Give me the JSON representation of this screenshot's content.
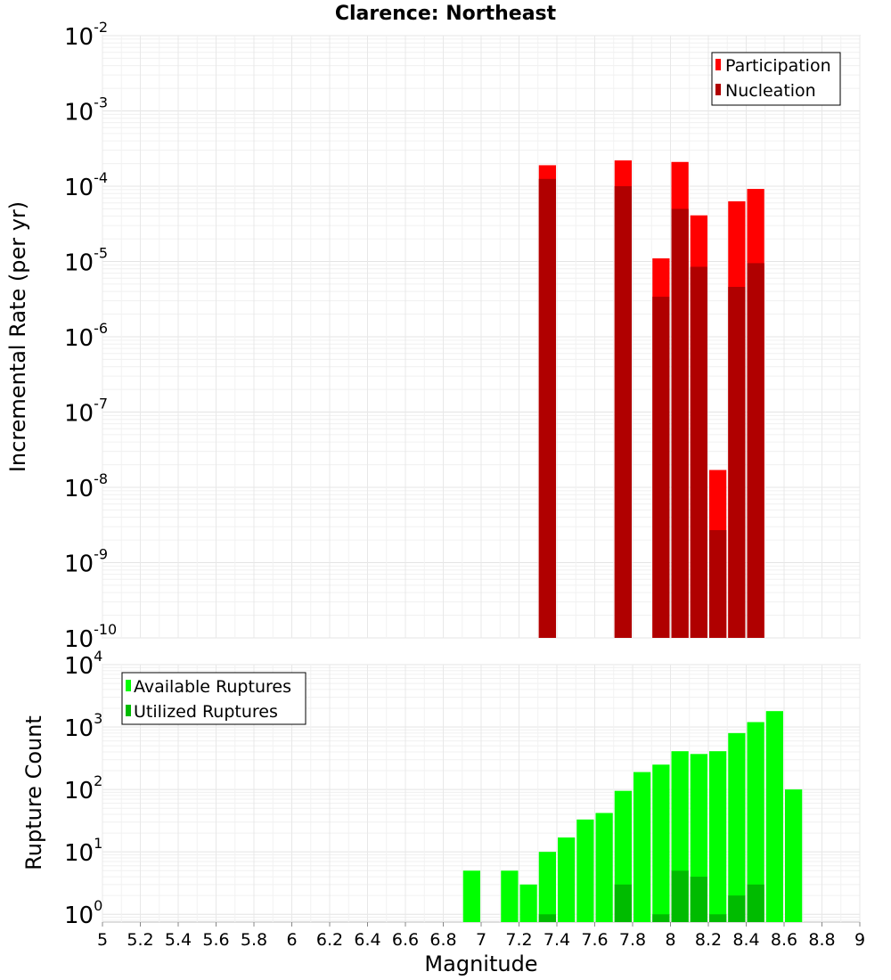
{
  "chart_data": [
    {
      "type": "bar",
      "title": "Clarence: Northeast",
      "xlabel": "",
      "ylabel": "Incremental Rate (per yr)",
      "yscale": "log",
      "ylim": [
        1e-10,
        0.01
      ],
      "y_ticks": [
        {
          "base": "10",
          "exp": "-10",
          "value": 1e-10
        },
        {
          "base": "10",
          "exp": "-9",
          "value": 1e-09
        },
        {
          "base": "10",
          "exp": "-8",
          "value": 1e-08
        },
        {
          "base": "10",
          "exp": "-7",
          "value": 1e-07
        },
        {
          "base": "10",
          "exp": "-6",
          "value": 1e-06
        },
        {
          "base": "10",
          "exp": "-5",
          "value": 1e-05
        },
        {
          "base": "10",
          "exp": "-4",
          "value": 0.0001
        },
        {
          "base": "10",
          "exp": "-3",
          "value": 0.001
        },
        {
          "base": "10",
          "exp": "-2",
          "value": 0.01
        }
      ],
      "legend": {
        "position": "top-right"
      },
      "series": [
        {
          "name": "Participation",
          "color": "#ff0000",
          "x": [
            7.35,
            7.75,
            7.95,
            8.05,
            8.15,
            8.25,
            8.35,
            8.45
          ],
          "values": [
            0.00019,
            0.00022,
            1.1e-05,
            0.00021,
            4.1e-05,
            1.7e-08,
            6.3e-05,
            9.2e-05
          ]
        },
        {
          "name": "Nucleation",
          "color": "#b00000",
          "x": [
            7.35,
            7.75,
            7.95,
            8.05,
            8.15,
            8.25,
            8.35,
            8.45
          ],
          "values": [
            0.000125,
            0.0001,
            3.4e-06,
            5e-05,
            8.5e-06,
            2.7e-09,
            4.6e-06,
            9.5e-06
          ]
        }
      ]
    },
    {
      "type": "bar",
      "title": "",
      "xlabel": "Magnitude",
      "ylabel": "Rupture Count",
      "yscale": "log",
      "ylim": [
        0.75,
        10000
      ],
      "y_ticks": [
        {
          "base": "10",
          "exp": "0",
          "value": 1
        },
        {
          "base": "10",
          "exp": "1",
          "value": 10
        },
        {
          "base": "10",
          "exp": "2",
          "value": 100
        },
        {
          "base": "10",
          "exp": "3",
          "value": 1000
        },
        {
          "base": "10",
          "exp": "4",
          "value": 10000
        }
      ],
      "xlim": [
        5,
        9
      ],
      "x_ticks": [
        "5",
        "5.2",
        "5.4",
        "5.6",
        "5.8",
        "6",
        "6.2",
        "6.4",
        "6.6",
        "6.8",
        "7",
        "7.2",
        "7.4",
        "7.6",
        "7.8",
        "8",
        "8.2",
        "8.4",
        "8.6",
        "8.8",
        "9"
      ],
      "legend": {
        "position": "top-left"
      },
      "series": [
        {
          "name": "Available Ruptures",
          "color": "#00ff00",
          "x": [
            6.95,
            7.15,
            7.25,
            7.35,
            7.45,
            7.55,
            7.65,
            7.75,
            7.85,
            7.95,
            8.05,
            8.15,
            8.25,
            8.35,
            8.45,
            8.55,
            8.65
          ],
          "values": [
            5,
            5,
            3,
            10,
            17,
            33,
            42,
            95,
            190,
            250,
            410,
            370,
            410,
            800,
            1200,
            1800,
            100
          ]
        },
        {
          "name": "Utilized Ruptures",
          "color": "#00bb00",
          "x": [
            7.35,
            7.75,
            7.95,
            8.05,
            8.15,
            8.25,
            8.35,
            8.45
          ],
          "values": [
            1,
            3,
            1,
            5,
            4,
            1,
            2,
            3
          ]
        }
      ]
    }
  ]
}
